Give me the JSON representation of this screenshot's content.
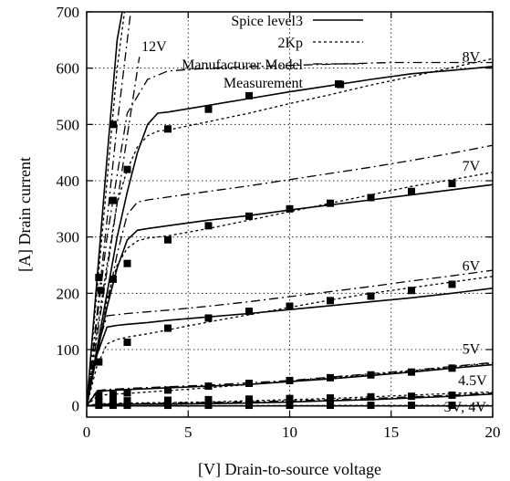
{
  "chart_data": {
    "type": "line",
    "xlabel": "[V] Drain-to-source voltage",
    "ylabel": "[A] Drain current",
    "xlim": [
      0,
      20
    ],
    "ylim": [
      -20,
      700
    ],
    "x_ticks": [
      0,
      5,
      10,
      15,
      20
    ],
    "x_tick_labels": [
      "0",
      "5",
      "10",
      "15",
      "20"
    ],
    "y_ticks": [
      0,
      100,
      200,
      300,
      400,
      500,
      600,
      700
    ],
    "y_tick_labels": [
      "0",
      "100",
      "200",
      "300",
      "400",
      "500",
      "600",
      "700"
    ],
    "grid": "dotted",
    "legend_position": "top-center",
    "legend": [
      {
        "name": "Spice level3",
        "style": "solid"
      },
      {
        "name": "2Kp",
        "style": "dotted"
      },
      {
        "name": "Manufacturer Model",
        "style": "dashdot"
      },
      {
        "name": "Measurement",
        "style": "square-markers"
      }
    ],
    "gate_labels": [
      {
        "text": "12V",
        "x": 2.7,
        "y": 630
      },
      {
        "text": "8V",
        "x": 18.5,
        "y": 612
      },
      {
        "text": "7V",
        "x": 18.5,
        "y": 418
      },
      {
        "text": "6V",
        "x": 18.5,
        "y": 240
      },
      {
        "text": "5V",
        "x": 18.5,
        "y": 93
      },
      {
        "text": "4.5V",
        "x": 18.3,
        "y": 37
      },
      {
        "text": "3V; 4V",
        "x": 17.6,
        "y": -10
      }
    ],
    "series": [
      {
        "name": "Spice level3",
        "group": "8V",
        "style": "solid",
        "x": [
          0,
          0.5,
          1,
          1.5,
          2,
          2.5,
          3,
          3.5,
          4,
          6,
          8,
          10,
          12,
          14,
          16,
          18,
          20
        ],
        "y": [
          0,
          100,
          200,
          300,
          380,
          450,
          500,
          520,
          522,
          534,
          546,
          558,
          569,
          580,
          590,
          596,
          603
        ]
      },
      {
        "name": "2Kp",
        "group": "8V",
        "style": "dotted",
        "x": [
          0,
          0.5,
          1,
          1.5,
          2,
          2.5,
          3,
          3.5,
          4,
          6,
          8,
          10,
          12,
          14,
          16,
          18,
          20
        ],
        "y": [
          0,
          130,
          250,
          360,
          420,
          460,
          480,
          488,
          490,
          505,
          520,
          537,
          553,
          570,
          585,
          601,
          617
        ]
      },
      {
        "name": "Manufacturer Model",
        "group": "8V",
        "style": "dashdot",
        "x": [
          0,
          1,
          2,
          3,
          4,
          6,
          10,
          15,
          20
        ],
        "y": [
          0,
          300,
          520,
          580,
          595,
          600,
          605,
          610,
          610
        ]
      },
      {
        "name": "Measurement",
        "group": "8V",
        "style": "markers",
        "x": [
          1.3,
          2,
          4,
          6,
          8,
          12.5
        ],
        "y": [
          500,
          420,
          492,
          527,
          551,
          571
        ]
      },
      {
        "name": "Spice level3",
        "group": "7V",
        "style": "solid",
        "x": [
          0,
          0.5,
          1,
          1.5,
          2,
          2.5,
          3,
          4,
          6,
          8,
          10,
          12,
          14,
          16,
          18,
          20
        ],
        "y": [
          0,
          90,
          175,
          245,
          295,
          312,
          315,
          320,
          330,
          338,
          348,
          357,
          366,
          375,
          384,
          393
        ]
      },
      {
        "name": "2Kp",
        "group": "7V",
        "style": "dotted",
        "x": [
          0,
          0.5,
          1,
          1.5,
          2,
          2.5,
          3,
          4,
          6,
          8,
          10,
          12,
          14,
          16,
          18,
          20
        ],
        "y": [
          0,
          100,
          190,
          250,
          280,
          293,
          298,
          302,
          315,
          330,
          345,
          360,
          375,
          390,
          402,
          415
        ]
      },
      {
        "name": "Manufacturer Model",
        "group": "7V",
        "style": "dashdot",
        "x": [
          0,
          0.5,
          1,
          1.5,
          2,
          2.5,
          3,
          4,
          6,
          8,
          10,
          12,
          14,
          16,
          18,
          20
        ],
        "y": [
          0,
          90,
          180,
          270,
          340,
          362,
          366,
          371,
          381,
          391,
          402,
          413,
          424,
          436,
          449,
          463
        ]
      },
      {
        "name": "Measurement",
        "group": "7V",
        "style": "markers",
        "x": [
          2,
          4,
          6,
          8,
          10,
          12,
          14,
          16,
          18
        ],
        "y": [
          253,
          295,
          320,
          337,
          350,
          360,
          370,
          381,
          395
        ]
      },
      {
        "name": "Spice level3",
        "group": "6V",
        "style": "solid",
        "x": [
          0,
          0.5,
          1,
          1.5,
          2,
          3,
          4,
          6,
          8,
          10,
          12,
          14,
          16,
          18,
          20
        ],
        "y": [
          0,
          90,
          140,
          143,
          145,
          148,
          152,
          158,
          164,
          171,
          178,
          185,
          192,
          200,
          209
        ]
      },
      {
        "name": "2Kp",
        "group": "6V",
        "style": "dotted",
        "x": [
          0,
          0.5,
          1,
          1.5,
          2,
          3,
          4,
          6,
          8,
          10,
          12,
          14,
          16,
          18,
          20
        ],
        "y": [
          0,
          70,
          110,
          118,
          122,
          128,
          135,
          149,
          162,
          175,
          188,
          200,
          210,
          220,
          230
        ]
      },
      {
        "name": "Manufacturer Model",
        "group": "6V",
        "style": "dashdot",
        "x": [
          0,
          0.5,
          1,
          2,
          4,
          6,
          8,
          10,
          12,
          14,
          16,
          18,
          20
        ],
        "y": [
          0,
          100,
          160,
          164,
          170,
          177,
          185,
          194,
          203,
          212,
          222,
          231,
          241
        ]
      },
      {
        "name": "Measurement",
        "group": "6V",
        "style": "markers",
        "x": [
          2,
          4,
          6,
          8,
          10,
          12,
          14,
          16,
          18
        ],
        "y": [
          113,
          138,
          156,
          168,
          177,
          187,
          195,
          205,
          216
        ]
      },
      {
        "name": "Spice level3",
        "group": "5V",
        "style": "solid",
        "x": [
          0,
          0.5,
          1,
          2,
          4,
          6,
          8,
          10,
          12,
          14,
          16,
          18,
          20
        ],
        "y": [
          0,
          25,
          27,
          29,
          32,
          35,
          38,
          43,
          48,
          54,
          60,
          67,
          73
        ]
      },
      {
        "name": "2Kp",
        "group": "5V",
        "style": "dotted",
        "x": [
          0,
          0.5,
          1,
          2,
          4,
          6,
          8,
          10,
          12,
          14,
          16,
          18,
          20
        ],
        "y": [
          0,
          17,
          20,
          22,
          27,
          32,
          38,
          44,
          50,
          56,
          62,
          69,
          76
        ]
      },
      {
        "name": "Manufacturer Model",
        "group": "5V",
        "style": "dashdot",
        "x": [
          0,
          0.5,
          1,
          2,
          4,
          6,
          8,
          10,
          12,
          14,
          16,
          18,
          20
        ],
        "y": [
          0,
          27,
          29,
          31,
          34,
          37,
          41,
          45,
          51,
          57,
          63,
          70,
          77
        ]
      },
      {
        "name": "Measurement",
        "group": "5V",
        "style": "markers",
        "x": [
          0.6,
          1.3,
          2,
          4,
          6,
          8,
          10,
          12,
          14,
          16,
          18
        ],
        "y": [
          18,
          20,
          23,
          28,
          35,
          40,
          45,
          50,
          55,
          60,
          67
        ]
      },
      {
        "name": "Spice level3",
        "group": "4.5V",
        "style": "solid",
        "x": [
          0,
          0.5,
          1,
          2,
          4,
          6,
          8,
          10,
          12,
          14,
          16,
          18,
          20
        ],
        "y": [
          0,
          2,
          2,
          3,
          3,
          4,
          5,
          7,
          9,
          11,
          14,
          17,
          21
        ]
      },
      {
        "name": "2Kp",
        "group": "4.5V",
        "style": "dotted",
        "x": [
          0,
          0.5,
          1,
          2,
          4,
          6,
          8,
          10,
          12,
          14,
          16,
          18,
          20
        ],
        "y": [
          0,
          3,
          4,
          5,
          6,
          7,
          9,
          11,
          13,
          16,
          19,
          22,
          25
        ]
      },
      {
        "name": "Manufacturer Model",
        "group": "4.5V",
        "style": "dashdot",
        "x": [
          0,
          1,
          2,
          4,
          6,
          8,
          10,
          12,
          14,
          16,
          18,
          20
        ],
        "y": [
          0,
          3,
          4,
          5,
          6,
          7,
          9,
          11,
          13,
          16,
          19,
          23
        ]
      },
      {
        "name": "Measurement",
        "group": "4.5V",
        "style": "markers",
        "x": [
          0.6,
          1.3,
          2,
          4,
          6,
          8,
          10,
          12,
          14,
          16,
          18
        ],
        "y": [
          8,
          9,
          9,
          10,
          11,
          12,
          13,
          14,
          16,
          17,
          19
        ]
      },
      {
        "name": "Spice level3",
        "group": "3V; 4V",
        "style": "solid",
        "x": [
          0,
          20
        ],
        "y": [
          0,
          0
        ]
      },
      {
        "name": "2Kp",
        "group": "3V; 4V",
        "style": "dotted",
        "x": [
          0,
          20
        ],
        "y": [
          0,
          1
        ]
      },
      {
        "name": "Measurement",
        "group": "3V; 4V",
        "style": "markers",
        "x": [
          0.6,
          1.3,
          2,
          4,
          6,
          8,
          10,
          12,
          14,
          16,
          18
        ],
        "y": [
          1,
          1,
          1,
          1,
          1,
          1,
          1,
          1,
          1,
          1,
          1
        ]
      },
      {
        "name": "Spice level3",
        "group": "12V",
        "style": "solid",
        "x": [
          0,
          0.5,
          1,
          1.5,
          1.8
        ],
        "y": [
          0,
          220,
          440,
          650,
          710
        ]
      },
      {
        "name": "2Kp",
        "group": "12V",
        "style": "dotted",
        "x": [
          0,
          0.5,
          1,
          1.5,
          1.9
        ],
        "y": [
          0,
          200,
          400,
          600,
          710
        ]
      },
      {
        "name": "Manufacturer Model",
        "group": "12V",
        "style": "dashdot",
        "x": [
          0,
          0.5,
          1,
          1.5,
          2.2
        ],
        "y": [
          0,
          160,
          330,
          500,
          710
        ]
      },
      {
        "name": "Manufacturer Model",
        "group": "12V-b",
        "style": "dashdot",
        "x": [
          0,
          1,
          2,
          2.6
        ],
        "y": [
          0,
          240,
          480,
          620
        ]
      },
      {
        "name": "Measurement",
        "group": "12V",
        "style": "markers",
        "x": [
          0.6,
          1.3
        ],
        "y": [
          228,
          365
        ]
      },
      {
        "name": "Measurement",
        "group": "mid",
        "style": "markers",
        "x": [
          0.6,
          1.3,
          0.7
        ],
        "y": [
          78,
          225,
          205
        ]
      }
    ]
  }
}
